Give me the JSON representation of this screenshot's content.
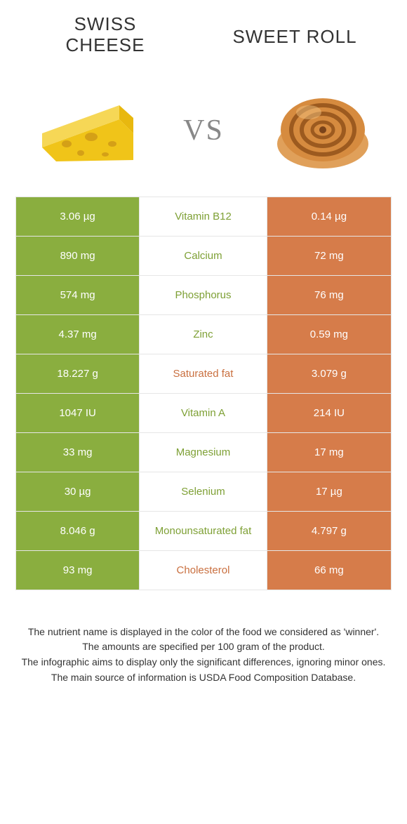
{
  "colors": {
    "winner_left_bg": "#8aae3f",
    "winner_left_text": "#7ea035",
    "winner_right_bg": "#d67c4a",
    "winner_right_text": "#c96f3f",
    "vs_color": "#888888"
  },
  "header": {
    "left_title": "Swiss cheese",
    "right_title": "Sweet roll",
    "vs": "vs"
  },
  "nutrients": [
    {
      "name": "Vitamin B12",
      "left": "3.06 µg",
      "right": "0.14 µg",
      "winner": "left"
    },
    {
      "name": "Calcium",
      "left": "890 mg",
      "right": "72 mg",
      "winner": "left"
    },
    {
      "name": "Phosphorus",
      "left": "574 mg",
      "right": "76 mg",
      "winner": "left"
    },
    {
      "name": "Zinc",
      "left": "4.37 mg",
      "right": "0.59 mg",
      "winner": "left"
    },
    {
      "name": "Saturated fat",
      "left": "18.227 g",
      "right": "3.079 g",
      "winner": "right"
    },
    {
      "name": "Vitamin A",
      "left": "1047 IU",
      "right": "214 IU",
      "winner": "left"
    },
    {
      "name": "Magnesium",
      "left": "33 mg",
      "right": "17 mg",
      "winner": "left"
    },
    {
      "name": "Selenium",
      "left": "30 µg",
      "right": "17 µg",
      "winner": "left"
    },
    {
      "name": "Monounsaturated fat",
      "left": "8.046 g",
      "right": "4.797 g",
      "winner": "left"
    },
    {
      "name": "Cholesterol",
      "left": "93 mg",
      "right": "66 mg",
      "winner": "right"
    }
  ],
  "footnotes": [
    "The nutrient name is displayed in the color of the food we considered as 'winner'.",
    "The amounts are specified per 100 gram of the product.",
    "The infographic aims to display only the significant differences, ignoring minor ones.",
    "The main source of information is USDA Food Composition Database."
  ]
}
